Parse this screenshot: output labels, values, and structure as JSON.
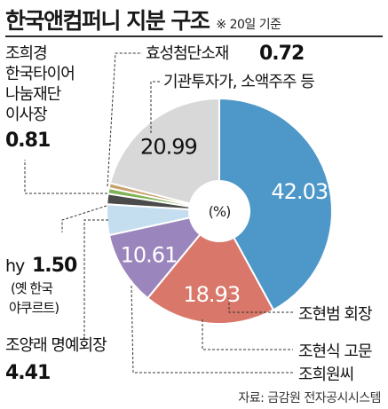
{
  "header": {
    "title": "한국앤컴퍼니 지분 구조",
    "note": "※ 20일 기준"
  },
  "source": "자료: 금감원 전자공시시스템",
  "chart_data": {
    "type": "pie",
    "donut": true,
    "center_label": "(%)",
    "start": "12 o'clock, clockwise",
    "slices": [
      {
        "label": "조현범 회장",
        "value": 42.03,
        "value_text": "42.03",
        "color": "#4d97c9",
        "value_color": "#ffffff"
      },
      {
        "label": "조현식 고문",
        "value": 18.93,
        "value_text": "18.93",
        "color": "#d9786a",
        "value_color": "#ffffff"
      },
      {
        "label": "조희원씨",
        "value": 10.61,
        "value_text": "10.61",
        "color": "#9b85bd",
        "value_color": "#ffffff"
      },
      {
        "label": [
          "조양래 명예회장"
        ],
        "value": 4.41,
        "value_text": "4.41",
        "color": "#c4def0"
      },
      {
        "label": [
          "hy",
          "(옛 한국",
          "야쿠르트)"
        ],
        "value": 1.5,
        "value_text": "1.50",
        "color": "#4b4b4b"
      },
      {
        "label": [
          "조희경",
          "한국타이어",
          "나눔재단",
          "이사장"
        ],
        "value": 0.81,
        "value_text": "0.81",
        "color": "#7fb356"
      },
      {
        "label": "효성첨단소재",
        "value": 0.72,
        "value_text": "0.72",
        "color": "#c7a06a"
      },
      {
        "label": "기관투자가, 소액주주 등",
        "value": 20.99,
        "value_text": "20.99",
        "color": "#d8d8d8",
        "value_color": "#111111"
      }
    ]
  }
}
